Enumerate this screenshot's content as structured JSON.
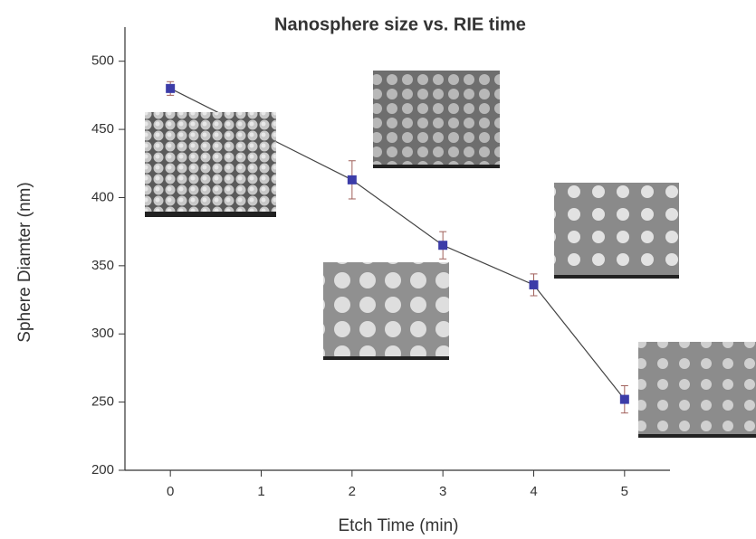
{
  "chart_data": {
    "type": "line",
    "title": "Nanosphere size vs. RIE time",
    "x_label": "Etch Time (min)",
    "y_label": "Sphere Diamter (nm)",
    "x": [
      0,
      2,
      3,
      4,
      5
    ],
    "series": [
      {
        "color": "#3c3ca8",
        "values": [
          480,
          413,
          365,
          336,
          252
        ],
        "errors": [
          5,
          14,
          10,
          8,
          10
        ]
      }
    ],
    "xlim": [
      -0.5,
      5.5
    ],
    "xticks": [
      0,
      1,
      2,
      3,
      4,
      5
    ],
    "ylim": [
      200,
      525
    ],
    "yticks": [
      200,
      250,
      300,
      350,
      400,
      450,
      500
    ]
  }
}
